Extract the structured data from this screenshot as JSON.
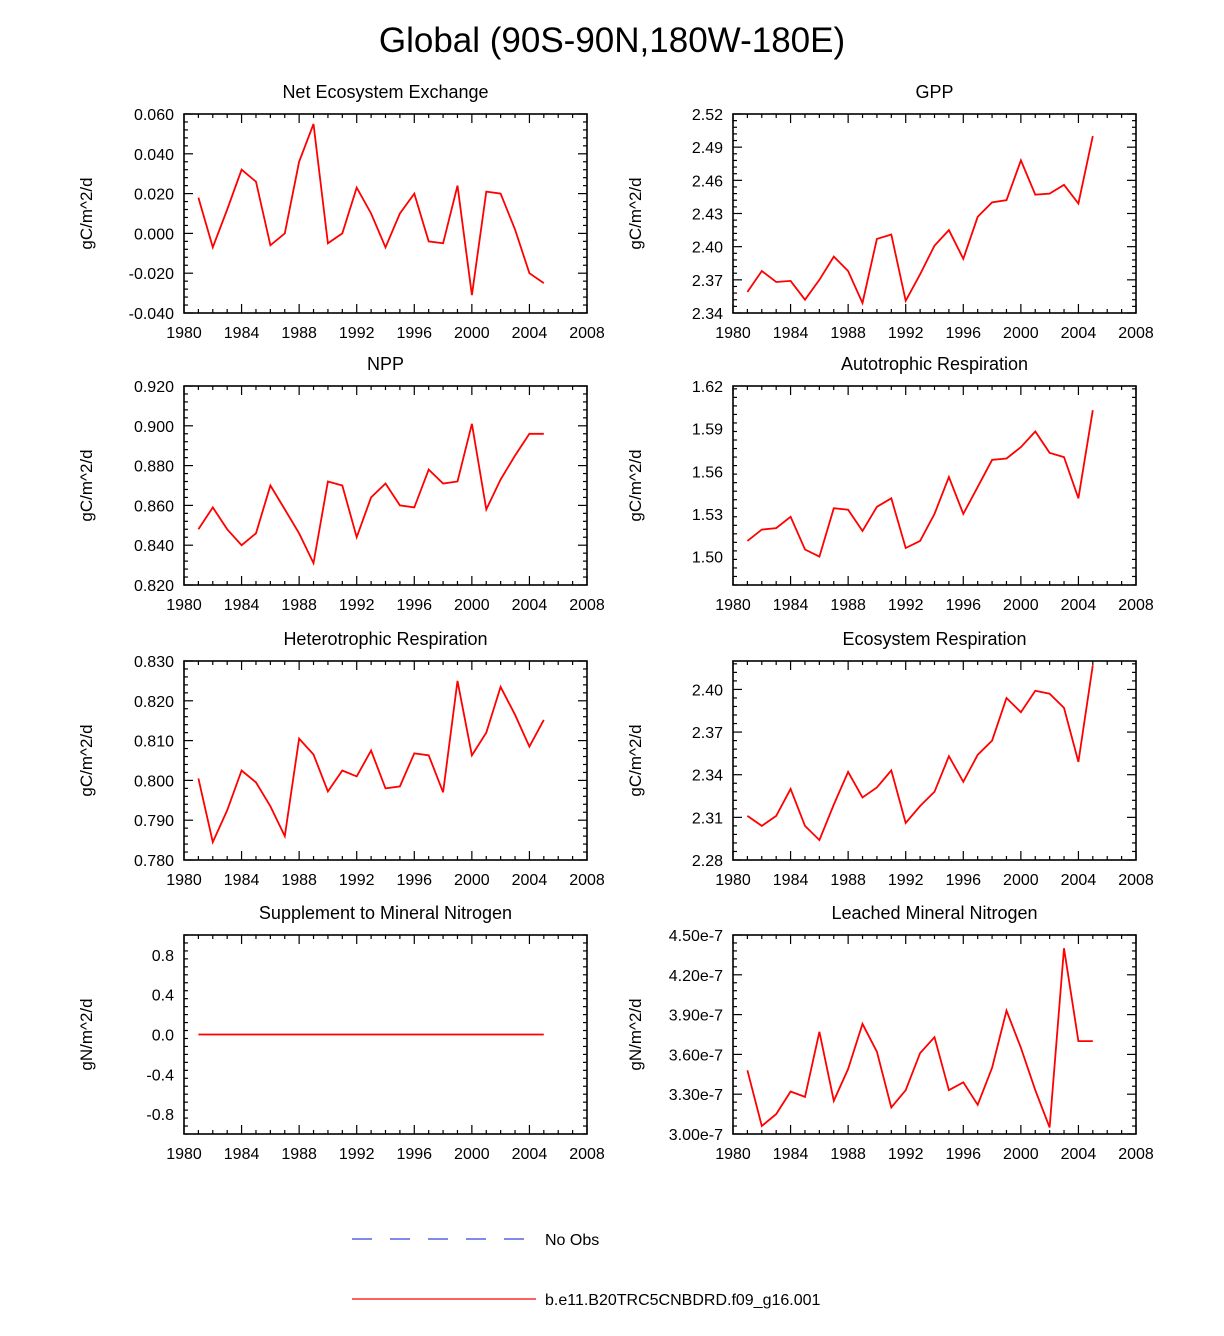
{
  "title": "Global (90S-90N,180W-180E)",
  "years": [
    1981,
    1982,
    1983,
    1984,
    1985,
    1986,
    1987,
    1988,
    1989,
    1990,
    1991,
    1992,
    1993,
    1994,
    1995,
    1996,
    1997,
    1998,
    1999,
    2000,
    2001,
    2002,
    2003,
    2004,
    2005
  ],
  "chart_data": [
    {
      "type": "line",
      "title": "Net Ecosystem Exchange",
      "ylabel": "gC/m^2/d",
      "xlim": [
        1980,
        2008
      ],
      "xticks": [
        "1980",
        "1984",
        "1988",
        "1992",
        "1996",
        "2000",
        "2004",
        "2008"
      ],
      "ylim": [
        -0.04,
        0.06
      ],
      "yticks": [
        "-0.040",
        "-0.020",
        "0.000",
        "0.020",
        "0.040",
        "0.060"
      ],
      "series": [
        {
          "name": "b.e11.B20TRC5CNBDRD.f09_g16.001",
          "color": "#ff0000",
          "values": [
            0.018,
            -0.007,
            0.012,
            0.032,
            0.026,
            -0.006,
            0.0,
            0.036,
            0.055,
            -0.005,
            0.0,
            0.023,
            0.01,
            -0.007,
            0.01,
            0.02,
            -0.004,
            -0.005,
            0.024,
            -0.031,
            0.021,
            0.02,
            0.002,
            -0.02,
            -0.025
          ]
        }
      ]
    },
    {
      "type": "line",
      "title": "GPP",
      "ylabel": "gC/m^2/d",
      "xlim": [
        1980,
        2008
      ],
      "xticks": [
        "1980",
        "1984",
        "1988",
        "1992",
        "1996",
        "2000",
        "2004",
        "2008"
      ],
      "ylim": [
        2.34,
        2.52
      ],
      "yticks": [
        "2.34",
        "2.37",
        "2.40",
        "2.43",
        "2.46",
        "2.49",
        "2.52"
      ],
      "series": [
        {
          "name": "b.e11.B20TRC5CNBDRD.f09_g16.001",
          "color": "#ff0000",
          "values": [
            2.359,
            2.378,
            2.368,
            2.369,
            2.352,
            2.37,
            2.391,
            2.378,
            2.349,
            2.407,
            2.411,
            2.351,
            2.375,
            2.401,
            2.415,
            2.389,
            2.427,
            2.44,
            2.442,
            2.478,
            2.447,
            2.448,
            2.456,
            2.439,
            2.5
          ]
        }
      ]
    },
    {
      "type": "line",
      "title": "NPP",
      "ylabel": "gC/m^2/d",
      "xlim": [
        1980,
        2008
      ],
      "xticks": [
        "1980",
        "1984",
        "1988",
        "1992",
        "1996",
        "2000",
        "2004",
        "2008"
      ],
      "ylim": [
        0.82,
        0.92
      ],
      "yticks": [
        "0.820",
        "0.840",
        "0.860",
        "0.880",
        "0.900",
        "0.920"
      ],
      "series": [
        {
          "name": "b.e11.B20TRC5CNBDRD.f09_g16.001",
          "color": "#ff0000",
          "values": [
            0.848,
            0.859,
            0.848,
            0.84,
            0.846,
            0.87,
            0.858,
            0.846,
            0.831,
            0.872,
            0.87,
            0.844,
            0.864,
            0.871,
            0.86,
            0.859,
            0.878,
            0.871,
            0.872,
            0.901,
            0.858,
            0.873,
            0.885,
            0.896,
            0.896
          ]
        }
      ]
    },
    {
      "type": "line",
      "title": "Autotrophic Respiration",
      "ylabel": "gC/m^2/d",
      "xlim": [
        1980,
        2008
      ],
      "xticks": [
        "1980",
        "1984",
        "1988",
        "1992",
        "1996",
        "2000",
        "2004",
        "2008"
      ],
      "ylim": [
        1.48,
        1.62
      ],
      "yticks": [
        "1.50",
        "1.53",
        "1.56",
        "1.59",
        "1.62"
      ],
      "series": [
        {
          "name": "b.e11.B20TRC5CNBDRD.f09_g16.001",
          "color": "#ff0000",
          "values": [
            1.511,
            1.519,
            1.52,
            1.528,
            1.505,
            1.5,
            1.534,
            1.533,
            1.518,
            1.535,
            1.541,
            1.506,
            1.511,
            1.53,
            1.556,
            1.53,
            1.549,
            1.568,
            1.569,
            1.577,
            1.588,
            1.573,
            1.57,
            1.541,
            1.603
          ]
        }
      ]
    },
    {
      "type": "line",
      "title": "Heterotrophic Respiration",
      "ylabel": "gC/m^2/d",
      "xlim": [
        1980,
        2008
      ],
      "xticks": [
        "1980",
        "1984",
        "1988",
        "1992",
        "1996",
        "2000",
        "2004",
        "2008"
      ],
      "ylim": [
        0.78,
        0.83
      ],
      "yticks": [
        "0.780",
        "0.790",
        "0.800",
        "0.810",
        "0.820",
        "0.830"
      ],
      "series": [
        {
          "name": "b.e11.B20TRC5CNBDRD.f09_g16.001",
          "color": "#ff0000",
          "values": [
            0.8005,
            0.7845,
            0.7925,
            0.8025,
            0.7995,
            0.7935,
            0.786,
            0.8105,
            0.8065,
            0.7972,
            0.8025,
            0.801,
            0.8075,
            0.798,
            0.7985,
            0.8068,
            0.8063,
            0.797,
            0.825,
            0.8063,
            0.812,
            0.8235,
            0.8165,
            0.8085,
            0.8152
          ]
        }
      ]
    },
    {
      "type": "line",
      "title": "Ecosystem Respiration",
      "ylabel": "gC/m^2/d",
      "xlim": [
        1980,
        2008
      ],
      "xticks": [
        "1980",
        "1984",
        "1988",
        "1992",
        "1996",
        "2000",
        "2004",
        "2008"
      ],
      "ylim": [
        2.28,
        2.42
      ],
      "yticks": [
        "2.28",
        "2.31",
        "2.34",
        "2.37",
        "2.40"
      ],
      "series": [
        {
          "name": "b.e11.B20TRC5CNBDRD.f09_g16.001",
          "color": "#ff0000",
          "values": [
            2.311,
            2.304,
            2.311,
            2.33,
            2.304,
            2.294,
            2.319,
            2.342,
            2.324,
            2.331,
            2.343,
            2.306,
            2.318,
            2.328,
            2.353,
            2.335,
            2.354,
            2.364,
            2.394,
            2.384,
            2.399,
            2.397,
            2.387,
            2.349,
            2.417
          ]
        }
      ]
    },
    {
      "type": "line",
      "title": "Supplement to Mineral Nitrogen",
      "ylabel": "gN/m^2/d",
      "xlim": [
        1980,
        2008
      ],
      "xticks": [
        "1980",
        "1984",
        "1988",
        "1992",
        "1996",
        "2000",
        "2004",
        "2008"
      ],
      "ylim": [
        -1.0,
        1.0
      ],
      "yticks": [
        "-0.8",
        "-0.4",
        "0.0",
        "0.4",
        "0.8"
      ],
      "ytick_values": [
        -0.8,
        -0.4,
        0.0,
        0.4,
        0.8
      ],
      "series": [
        {
          "name": "b.e11.B20TRC5CNBDRD.f09_g16.001",
          "color": "#ff0000",
          "values": [
            0,
            0,
            0,
            0,
            0,
            0,
            0,
            0,
            0,
            0,
            0,
            0,
            0,
            0,
            0,
            0,
            0,
            0,
            0,
            0,
            0,
            0,
            0,
            0,
            0
          ]
        }
      ]
    },
    {
      "type": "line",
      "title": "Leached Mineral Nitrogen",
      "ylabel": "gN/m^2/d",
      "xlim": [
        1980,
        2008
      ],
      "xticks": [
        "1980",
        "1984",
        "1988",
        "1992",
        "1996",
        "2000",
        "2004",
        "2008"
      ],
      "ylim": [
        3e-07,
        4.5e-07
      ],
      "yticks": [
        "3.00e-7",
        "3.30e-7",
        "3.60e-7",
        "3.90e-7",
        "4.20e-7",
        "4.50e-7"
      ],
      "ytick_values": [
        3e-07,
        3.3e-07,
        3.6e-07,
        3.9e-07,
        4.2e-07,
        4.5e-07
      ],
      "series": [
        {
          "name": "b.e11.B20TRC5CNBDRD.f09_g16.001",
          "color": "#ff0000",
          "values": [
            3.48e-07,
            3.06e-07,
            3.15e-07,
            3.32e-07,
            3.28e-07,
            3.77e-07,
            3.25e-07,
            3.49e-07,
            3.83e-07,
            3.62e-07,
            3.2e-07,
            3.33e-07,
            3.61e-07,
            3.73e-07,
            3.33e-07,
            3.39e-07,
            3.22e-07,
            3.5e-07,
            3.93e-07,
            3.65e-07,
            3.33e-07,
            3.05e-07,
            4.4e-07,
            3.7e-07,
            3.7e-07
          ]
        }
      ]
    }
  ],
  "legend": [
    {
      "label": "No Obs",
      "color": "#3344dd",
      "style": "dashed"
    },
    {
      "label": "b.e11.B20TRC5CNBDRD.f09_g16.001",
      "color": "#ff0000",
      "style": "solid"
    }
  ]
}
